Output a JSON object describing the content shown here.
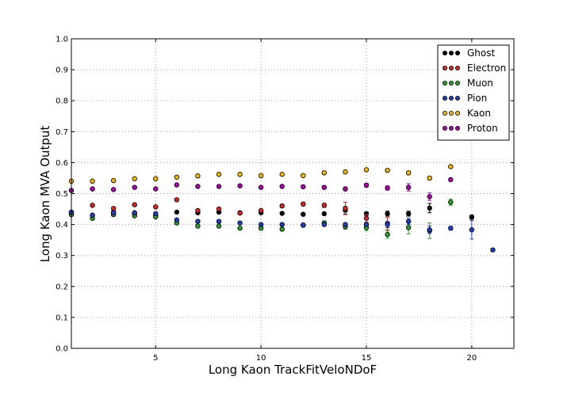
{
  "chart_data": {
    "type": "scatter",
    "xlabel": "Long Kaon TrackFitVeloNDoF",
    "ylabel": "Long Kaon MVA Output",
    "xlim": [
      1,
      22
    ],
    "ylim": [
      0.0,
      1.0
    ],
    "xticks": [
      5,
      10,
      15,
      20
    ],
    "yticks": [
      0.0,
      0.1,
      0.2,
      0.3,
      0.4,
      0.5,
      0.6,
      0.7,
      0.8,
      0.9,
      1.0
    ],
    "xtick_labels": [
      "5",
      "10",
      "15",
      "20"
    ],
    "ytick_labels": [
      "0.0",
      "0.1",
      "0.2",
      "0.3",
      "0.4",
      "0.5",
      "0.6",
      "0.7",
      "0.8",
      "0.9",
      "1.0"
    ],
    "grid": true,
    "legend_position": "top-right",
    "series": [
      {
        "name": "Ghost",
        "color": "#000000",
        "x": [
          1,
          2,
          3,
          4,
          5,
          6,
          7,
          8,
          9,
          10,
          11,
          12,
          13,
          14,
          15,
          16,
          17,
          18,
          20
        ],
        "y": [
          0.44,
          0.43,
          0.44,
          0.435,
          0.43,
          0.44,
          0.438,
          0.44,
          0.438,
          0.438,
          0.436,
          0.433,
          0.435,
          0.446,
          0.435,
          0.435,
          0.435,
          0.453,
          0.424
        ],
        "err": [
          0.004,
          0.003,
          0.003,
          0.003,
          0.003,
          0.003,
          0.003,
          0.003,
          0.003,
          0.003,
          0.004,
          0.004,
          0.005,
          0.012,
          0.006,
          0.008,
          0.008,
          0.015,
          0.007
        ]
      },
      {
        "name": "Electron",
        "color": "#d62728",
        "x": [
          1,
          2,
          3,
          4,
          5,
          6,
          7,
          8,
          9,
          10,
          11,
          12,
          13,
          14,
          15,
          16
        ],
        "y": [
          0.435,
          0.462,
          0.452,
          0.464,
          0.457,
          0.48,
          0.445,
          0.45,
          0.437,
          0.445,
          0.46,
          0.466,
          0.462,
          0.452,
          0.42,
          0.403
        ],
        "err": [
          0.004,
          0.004,
          0.004,
          0.004,
          0.004,
          0.004,
          0.004,
          0.005,
          0.005,
          0.005,
          0.006,
          0.006,
          0.007,
          0.02,
          0.012,
          0.02
        ]
      },
      {
        "name": "Muon",
        "color": "#2ca02c",
        "x": [
          1,
          2,
          3,
          4,
          5,
          6,
          7,
          8,
          9,
          10,
          11,
          12,
          13,
          14,
          15,
          16,
          17,
          18,
          19
        ],
        "y": [
          0.432,
          0.42,
          0.432,
          0.428,
          0.425,
          0.405,
          0.395,
          0.395,
          0.388,
          0.388,
          0.385,
          0.398,
          0.405,
          0.393,
          0.39,
          0.368,
          0.39,
          0.38,
          0.472
        ],
        "err": [
          0.004,
          0.004,
          0.004,
          0.004,
          0.004,
          0.004,
          0.004,
          0.004,
          0.005,
          0.005,
          0.005,
          0.006,
          0.007,
          0.008,
          0.01,
          0.012,
          0.02,
          0.025,
          0.01
        ]
      },
      {
        "name": "Pion",
        "color": "#1f3fbf",
        "x": [
          1,
          2,
          3,
          4,
          5,
          6,
          7,
          8,
          9,
          10,
          11,
          12,
          13,
          14,
          15,
          16,
          17,
          18,
          19,
          20,
          21
        ],
        "y": [
          0.44,
          0.43,
          0.438,
          0.438,
          0.435,
          0.415,
          0.41,
          0.41,
          0.405,
          0.4,
          0.4,
          0.398,
          0.4,
          0.4,
          0.4,
          0.4,
          0.41,
          0.383,
          0.388,
          0.383,
          0.318
        ],
        "err": [
          0.003,
          0.003,
          0.003,
          0.003,
          0.003,
          0.003,
          0.003,
          0.003,
          0.003,
          0.004,
          0.004,
          0.004,
          0.005,
          0.005,
          0.006,
          0.01,
          0.01,
          0.012,
          0.006,
          0.03,
          0.005
        ]
      },
      {
        "name": "Kaon",
        "color": "#f2b800",
        "x": [
          1,
          2,
          3,
          4,
          5,
          6,
          7,
          8,
          9,
          10,
          11,
          12,
          13,
          14,
          15,
          16,
          17,
          18,
          19
        ],
        "y": [
          0.54,
          0.54,
          0.542,
          0.548,
          0.548,
          0.553,
          0.557,
          0.562,
          0.562,
          0.558,
          0.562,
          0.558,
          0.567,
          0.57,
          0.577,
          0.575,
          0.567,
          0.55,
          0.587
        ],
        "err": [
          0.003,
          0.003,
          0.003,
          0.003,
          0.003,
          0.003,
          0.003,
          0.003,
          0.003,
          0.003,
          0.003,
          0.003,
          0.004,
          0.004,
          0.004,
          0.005,
          0.006,
          0.006,
          0.004
        ]
      },
      {
        "name": "Proton",
        "color": "#b000b0",
        "x": [
          1,
          2,
          3,
          4,
          5,
          6,
          7,
          8,
          9,
          10,
          11,
          12,
          13,
          14,
          15,
          16,
          17,
          18,
          19
        ],
        "y": [
          0.51,
          0.515,
          0.513,
          0.52,
          0.515,
          0.528,
          0.523,
          0.523,
          0.525,
          0.52,
          0.523,
          0.522,
          0.52,
          0.515,
          0.527,
          0.518,
          0.52,
          0.49,
          0.545
        ],
        "err": [
          0.003,
          0.003,
          0.003,
          0.003,
          0.003,
          0.003,
          0.003,
          0.003,
          0.003,
          0.003,
          0.004,
          0.004,
          0.004,
          0.006,
          0.006,
          0.007,
          0.012,
          0.012,
          0.005
        ]
      }
    ]
  }
}
